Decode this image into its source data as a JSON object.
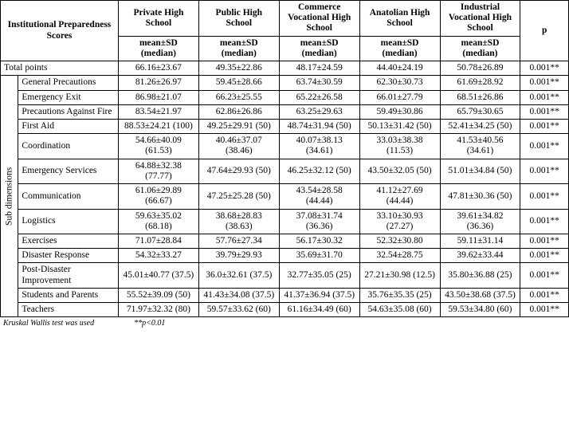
{
  "header": {
    "rowlabel": "Institutional Preparedness Scores",
    "cols": [
      "Private High School",
      "Public High School",
      "Commerce Vocational High School",
      "Anatolian High School",
      "Industrial Vocational High School"
    ],
    "pcol": "p",
    "sub": "mean±SD (median)"
  },
  "total": {
    "label": "Total points",
    "cells": [
      "66.16±23.67",
      "49.35±22.86",
      "48.17±24.59",
      "44.40±24.19",
      "50.78±26.89"
    ],
    "p": "0.001**"
  },
  "subdimLabel": "Sub dimensions",
  "rows": [
    {
      "label": "General Precautions",
      "c": [
        "81.26±26.97",
        "59.45±28.66",
        "63.74±30.59",
        "62.30±30.73",
        "61.69±28.92"
      ],
      "p": "0.001**"
    },
    {
      "label": "Emergency Exit",
      "c": [
        "86.98±21.07",
        "66.23±25.55",
        "65.22±26.58",
        "66.01±27.79",
        "68.51±26.86"
      ],
      "p": "0.001**"
    },
    {
      "label": "Precautions Against Fire",
      "c": [
        "83.54±21.97",
        "62.86±26.86",
        "63.25±29.63",
        "59.49±30.86",
        "65.79±30.65"
      ],
      "p": "0.001**"
    },
    {
      "label": "First Aid",
      "c": [
        "88.53±24.21 (100)",
        "49.25±29.91 (50)",
        "48.74±31.94 (50)",
        "50.13±31.42 (50)",
        "52.41±34.25 (50)"
      ],
      "p": "0.001**"
    },
    {
      "label": "Coordination",
      "c": [
        "54.66±40.09 (61.53)",
        "40.46±37.07 (38.46)",
        "40.07±38.13 (34.61)",
        "33.03±38.38 (11.53)",
        "41.53±40.56 (34.61)"
      ],
      "p": "0.001**"
    },
    {
      "label": "Emergency Services",
      "c": [
        "64.88±32.38 (77.77)",
        "47.64±29.93 (50)",
        "46.25±32.12 (50)",
        "43.50±32.05 (50)",
        "51.01±34.84 (50)"
      ],
      "p": "0.001**"
    },
    {
      "label": "Communication",
      "c": [
        "61.06±29.89 (66.67)",
        "47.25±25.28 (50)",
        "43.54±28.58 (44.44)",
        "41.12±27.69 (44.44)",
        "47.81±30.36 (50)"
      ],
      "p": "0.001**"
    },
    {
      "label": "Logistics",
      "c": [
        "59.63±35.02 (68.18)",
        "38.68±28.83 (38.63)",
        "37.08±31.74 (36.36)",
        "33.10±30.93 (27.27)",
        "39.61±34.82 (36.36)"
      ],
      "p": "0.001**"
    },
    {
      "label": "Exercises",
      "c": [
        "71.07±28.84",
        "57.76±27.34",
        "56.17±30.32",
        "52.32±30.80",
        "59.11±31.14"
      ],
      "p": "0.001**"
    },
    {
      "label": "Disaster Response",
      "c": [
        "54.32±33.27",
        "39.79±29.93",
        "35.69±31.70",
        "32.54±28.75",
        "39.62±33.44"
      ],
      "p": "0.001**"
    },
    {
      "label": "Post-Disaster Improvement",
      "c": [
        "45.01±40.77 (37.5)",
        "36.0±32.61 (37.5)",
        "32.77±35.05 (25)",
        "27.21±30.98 (12.5)",
        "35.80±36.88 (25)"
      ],
      "p": "0.001**"
    },
    {
      "label": "Students and Parents",
      "c": [
        "55.52±39.09 (50)",
        "41.43±34.08 (37.5)",
        "41.37±36.94 (37.5)",
        "35.76±35.35 (25)",
        "43.50±38.68 (37.5)"
      ],
      "p": "0.001**"
    },
    {
      "label": "Teachers",
      "c": [
        "71.97±32.32 (80)",
        "59.57±33.62 (60)",
        "61.16±34.49 (60)",
        "54.63±35.08 (60)",
        "59.53±34.80 (60)"
      ],
      "p": "0.001**"
    }
  ],
  "footnote": {
    "left": "Kruskal Wallis test was used",
    "right": "**p<0.01"
  }
}
